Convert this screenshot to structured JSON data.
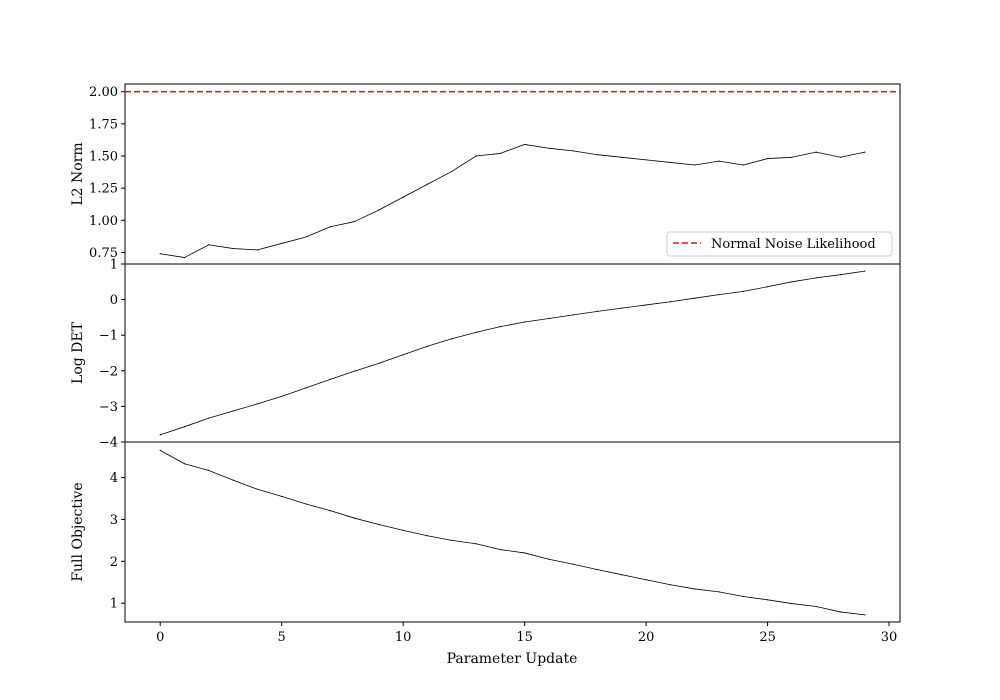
{
  "chart_data": [
    {
      "type": "line",
      "ylabel": "L2 Norm",
      "ylim": [
        0.66,
        2.06
      ],
      "xlim": [
        -1.45,
        30.45
      ],
      "yticks": [
        0.75,
        1.0,
        1.25,
        1.5,
        1.75,
        2.0
      ],
      "ytick_labels": [
        "0.75",
        "1.00",
        "1.25",
        "1.50",
        "1.75",
        "2.00"
      ],
      "reference_line": {
        "y": 2.0,
        "label": "Normal Noise Likelihood",
        "color": "#e8160b",
        "style": "dashed"
      },
      "legend_position": "lower-right",
      "series": [
        {
          "color": "#000000",
          "x": [
            0,
            1,
            2,
            3,
            4,
            5,
            6,
            7,
            8,
            9,
            10,
            11,
            12,
            13,
            14,
            15,
            16,
            17,
            18,
            19,
            20,
            21,
            22,
            23,
            24,
            25,
            26,
            27,
            28,
            29
          ],
          "values": [
            0.74,
            0.71,
            0.81,
            0.78,
            0.77,
            0.82,
            0.87,
            0.95,
            0.99,
            1.08,
            1.18,
            1.28,
            1.38,
            1.5,
            1.52,
            1.59,
            1.56,
            1.54,
            1.51,
            1.49,
            1.47,
            1.45,
            1.43,
            1.46,
            1.43,
            1.48,
            1.49,
            1.53,
            1.49,
            1.53
          ]
        }
      ]
    },
    {
      "type": "line",
      "ylabel": "Log DET",
      "ylim": [
        -4.0,
        1.0
      ],
      "xlim": [
        -1.45,
        30.45
      ],
      "yticks": [
        -4,
        -3,
        -2,
        -1,
        0,
        1
      ],
      "ytick_labels": [
        "−4",
        "−3",
        "−2",
        "−1",
        "0",
        "1"
      ],
      "series": [
        {
          "color": "#000000",
          "x": [
            0,
            1,
            2,
            3,
            4,
            5,
            6,
            7,
            8,
            9,
            10,
            11,
            12,
            13,
            14,
            15,
            16,
            17,
            18,
            19,
            20,
            21,
            22,
            23,
            24,
            25,
            26,
            27,
            28,
            29
          ],
          "values": [
            -3.8,
            -3.57,
            -3.33,
            -3.13,
            -2.93,
            -2.72,
            -2.48,
            -2.24,
            -2.01,
            -1.79,
            -1.55,
            -1.31,
            -1.1,
            -0.92,
            -0.76,
            -0.63,
            -0.53,
            -0.43,
            -0.33,
            -0.24,
            -0.15,
            -0.06,
            0.04,
            0.14,
            0.23,
            0.36,
            0.5,
            0.61,
            0.7,
            0.8
          ]
        }
      ]
    },
    {
      "type": "line",
      "ylabel": "Full Objective",
      "xlabel": "Parameter Update",
      "ylim": [
        0.55,
        4.85
      ],
      "xlim": [
        -1.45,
        30.45
      ],
      "yticks": [
        1,
        2,
        3,
        4
      ],
      "ytick_labels": [
        "1",
        "2",
        "3",
        "4"
      ],
      "xticks": [
        0,
        5,
        10,
        15,
        20,
        25,
        30
      ],
      "xtick_labels": [
        "0",
        "5",
        "10",
        "15",
        "20",
        "25",
        "30"
      ],
      "series": [
        {
          "color": "#000000",
          "x": [
            0,
            1,
            2,
            3,
            4,
            5,
            6,
            7,
            8,
            9,
            10,
            11,
            12,
            13,
            14,
            15,
            16,
            17,
            18,
            19,
            20,
            21,
            22,
            23,
            24,
            25,
            26,
            27,
            28,
            29
          ],
          "values": [
            4.65,
            4.33,
            4.17,
            3.94,
            3.72,
            3.55,
            3.37,
            3.21,
            3.03,
            2.88,
            2.74,
            2.61,
            2.5,
            2.42,
            2.28,
            2.2,
            2.05,
            1.93,
            1.8,
            1.68,
            1.56,
            1.44,
            1.34,
            1.27,
            1.16,
            1.08,
            0.99,
            0.92,
            0.79,
            0.72
          ]
        }
      ]
    }
  ]
}
